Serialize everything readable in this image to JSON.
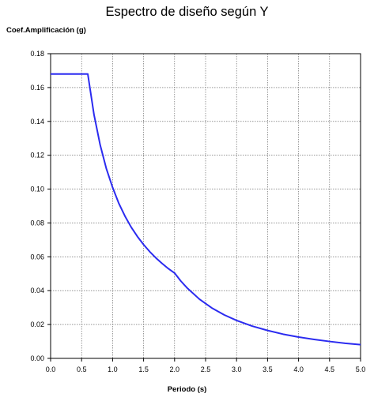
{
  "chart_data": {
    "type": "line",
    "title": "Espectro de diseño según Y",
    "xlabel": "Periodo (s)",
    "ylabel": "Coef.Amplificación (g)",
    "xlim": [
      0,
      5
    ],
    "ylim": [
      0,
      0.18
    ],
    "xticks": [
      "0.0",
      "0.5",
      "1.0",
      "1.5",
      "2.0",
      "2.5",
      "3.0",
      "3.5",
      "4.0",
      "4.5",
      "5.0"
    ],
    "yticks": [
      "0.00",
      "0.02",
      "0.04",
      "0.06",
      "0.08",
      "0.10",
      "0.12",
      "0.14",
      "0.16",
      "0.18"
    ],
    "grid": true,
    "series": [
      {
        "color": "#2b2bf0",
        "x": [
          0,
          0.1,
          0.2,
          0.3,
          0.4,
          0.5,
          0.6,
          0.7,
          0.8,
          0.9,
          1.0,
          1.1,
          1.2,
          1.3,
          1.4,
          1.5,
          1.6,
          1.7,
          1.8,
          1.9,
          2.0,
          2.1,
          2.2,
          2.4,
          2.6,
          2.8,
          3.0,
          3.25,
          3.5,
          3.75,
          4.0,
          4.25,
          4.5,
          4.75,
          5.0
        ],
        "y": [
          0.168,
          0.168,
          0.168,
          0.168,
          0.168,
          0.168,
          0.168,
          0.144,
          0.126,
          0.112,
          0.101,
          0.0916,
          0.084,
          0.0775,
          0.072,
          0.0672,
          0.063,
          0.0593,
          0.056,
          0.053,
          0.0504,
          0.0457,
          0.0417,
          0.035,
          0.0298,
          0.0257,
          0.0224,
          0.0191,
          0.0165,
          0.0143,
          0.0126,
          0.0112,
          0.01,
          0.0089,
          0.0081
        ]
      }
    ]
  }
}
